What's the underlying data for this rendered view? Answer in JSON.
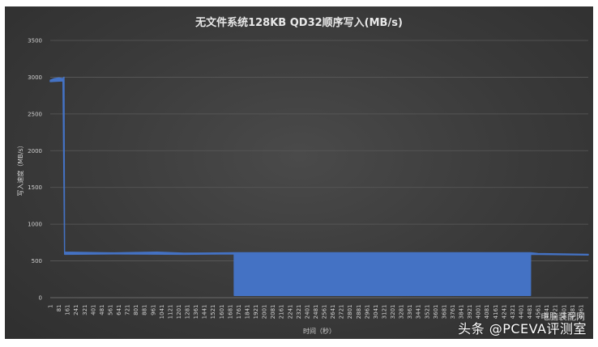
{
  "chart_data": {
    "type": "area",
    "title": "无文件系统128KB QD32顺序写入(MB/s)",
    "xlabel": "时间（秒）",
    "ylabel": "写入速度（MB/s）",
    "ylim": [
      0,
      3500
    ],
    "yticks": [
      0,
      500,
      1000,
      1500,
      2000,
      2500,
      3000,
      3500
    ],
    "xlim": [
      1,
      5030
    ],
    "xticks": [
      1,
      81,
      161,
      241,
      321,
      401,
      481,
      561,
      641,
      721,
      801,
      881,
      961,
      1041,
      1121,
      1201,
      1281,
      1361,
      1441,
      1521,
      1601,
      1681,
      1761,
      1841,
      1921,
      2001,
      2081,
      2161,
      2241,
      2321,
      2401,
      2481,
      2561,
      2641,
      2721,
      2801,
      2881,
      2961,
      3041,
      3121,
      3201,
      3281,
      3361,
      3441,
      3521,
      3601,
      3681,
      3761,
      3841,
      3921,
      4001,
      4081,
      4161,
      4241,
      4321,
      4401,
      4481,
      4561,
      4641,
      4721,
      4801,
      4881,
      4961
    ],
    "grid": true,
    "legend": "none",
    "color": "#4472c4",
    "series": [
      {
        "upper": [
          [
            1,
            2960
          ],
          [
            40,
            2980
          ],
          [
            81,
            2990
          ],
          [
            120,
            2980
          ],
          [
            130,
            3000
          ],
          [
            135,
            620
          ],
          [
            600,
            610
          ],
          [
            1000,
            620
          ],
          [
            1250,
            605
          ],
          [
            1650,
            610
          ],
          [
            1720,
            612
          ],
          [
            4490,
            612
          ],
          [
            4560,
            600
          ],
          [
            5030,
            590
          ]
        ],
        "lower": [
          [
            1,
            2940
          ],
          [
            120,
            2950
          ],
          [
            135,
            590
          ],
          [
            600,
            595
          ],
          [
            1250,
            590
          ],
          [
            1720,
            595
          ],
          [
            1721,
            30
          ],
          [
            4490,
            30
          ],
          [
            4491,
            590
          ],
          [
            5030,
            580
          ]
        ]
      }
    ]
  },
  "watermark": {
    "text": "头条 @PCEVA评测室",
    "site": "电脑装配网"
  }
}
